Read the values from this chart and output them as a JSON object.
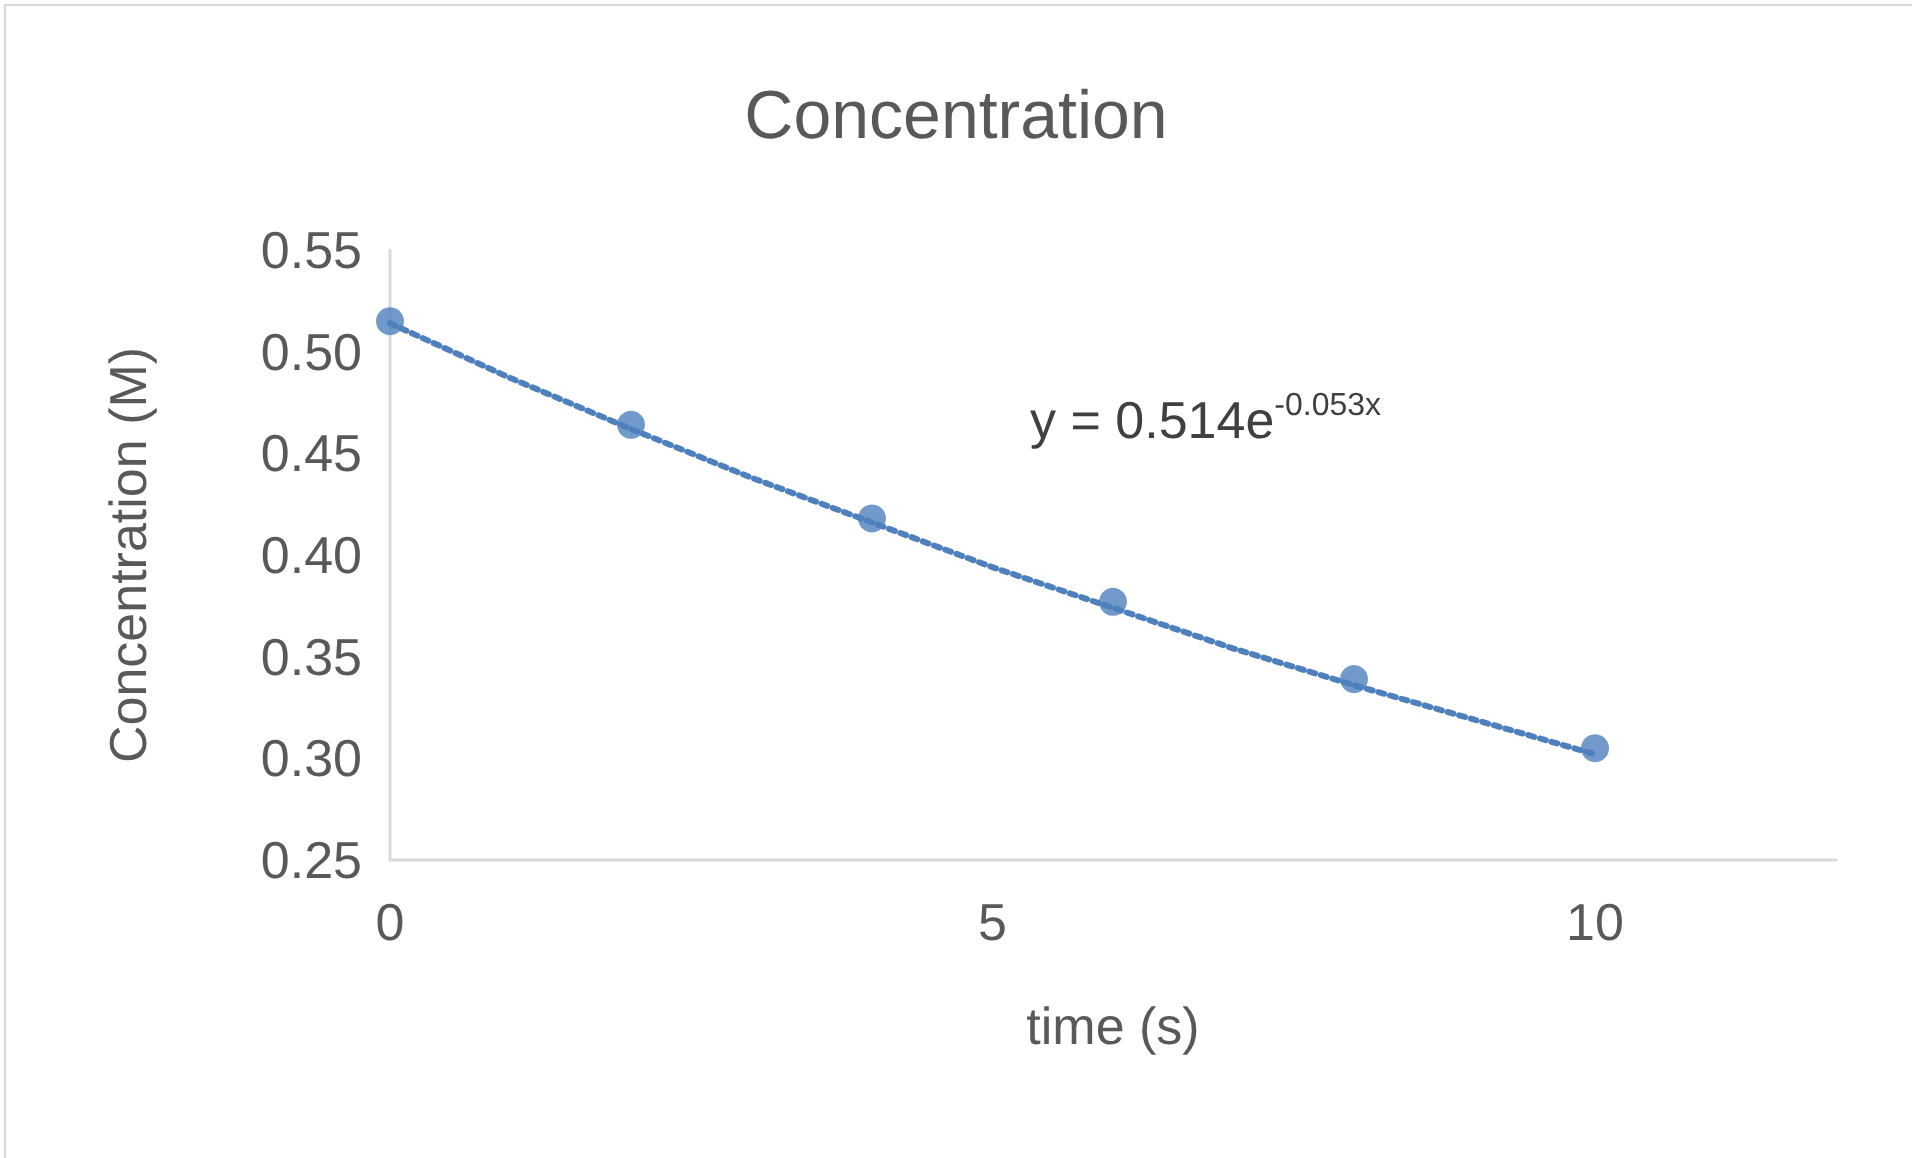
{
  "chart_data": {
    "type": "scatter",
    "title": "Concentration",
    "xlabel": "time (s)",
    "ylabel": "Concentration (M)",
    "annotations": [
      "y = 0.514e$^{-0.053x}$"
    ],
    "xlim": [
      0,
      12
    ],
    "xticks": [
      0,
      5,
      10
    ],
    "ylim": [
      0.25,
      0.55
    ],
    "yticks": [
      0.25,
      {
        "value": 0.3,
        "label": "0.30"
      },
      0.35,
      {
        "value": 0.4,
        "label": "0.40"
      },
      0.45,
      {
        "value": 0.5,
        "label": "0.50"
      },
      0.55
    ],
    "grid": false,
    "marker": "circle",
    "series": [
      {
        "color": "#4e80bd",
        "x": [
          0,
          2,
          4,
          6,
          8,
          10
        ],
        "values": [
          0.515,
          0.464,
          0.418,
          0.377,
          0.339,
          0.305
        ]
      },
      {
        "type": "line",
        "color": "#4e80bd",
        "marker": "none",
        "line_style": "dotted",
        "x": [
          0,
          1,
          2,
          3,
          4,
          5,
          6,
          7,
          8,
          9,
          10
        ],
        "values": [
          0.514,
          0.487,
          0.462,
          0.438,
          0.416,
          0.394,
          0.374,
          0.354,
          0.336,
          0.319,
          0.302
        ]
      }
    ]
  }
}
